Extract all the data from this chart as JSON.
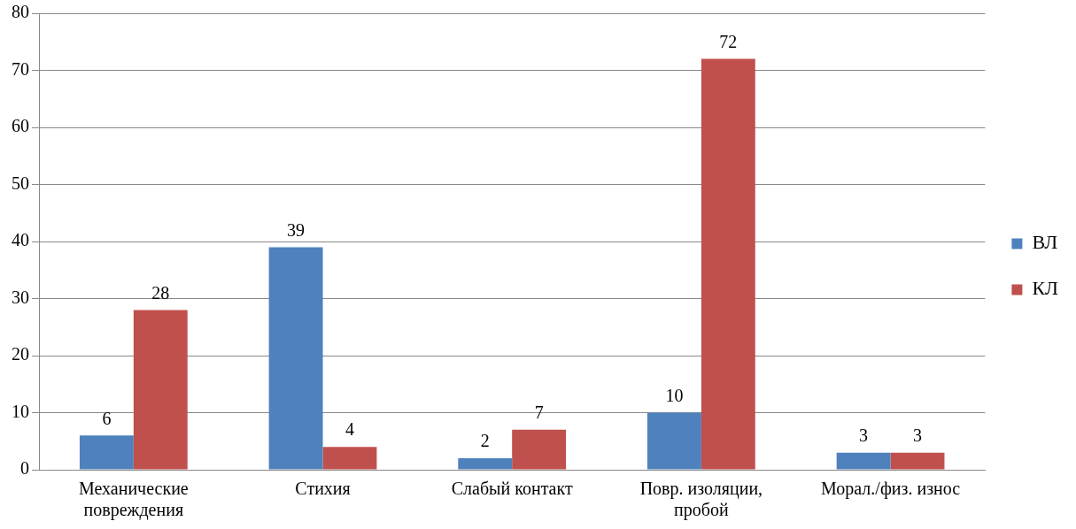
{
  "chart_data": {
    "type": "bar",
    "categories": [
      "Механические повреждения",
      "Стихия",
      "Слабый контакт",
      "Повр. изоляции, пробой",
      "Морал./физ. износ"
    ],
    "series": [
      {
        "name": "ВЛ",
        "color": "#4f81bd",
        "values": [
          6,
          39,
          2,
          10,
          3
        ]
      },
      {
        "name": "КЛ",
        "color": "#c0504d",
        "values": [
          28,
          4,
          7,
          72,
          3
        ]
      }
    ],
    "ylim": [
      0,
      80
    ],
    "yticks": [
      0,
      10,
      20,
      30,
      40,
      50,
      60,
      70,
      80
    ],
    "grid": "y",
    "legend": "right",
    "data_labels": true
  }
}
